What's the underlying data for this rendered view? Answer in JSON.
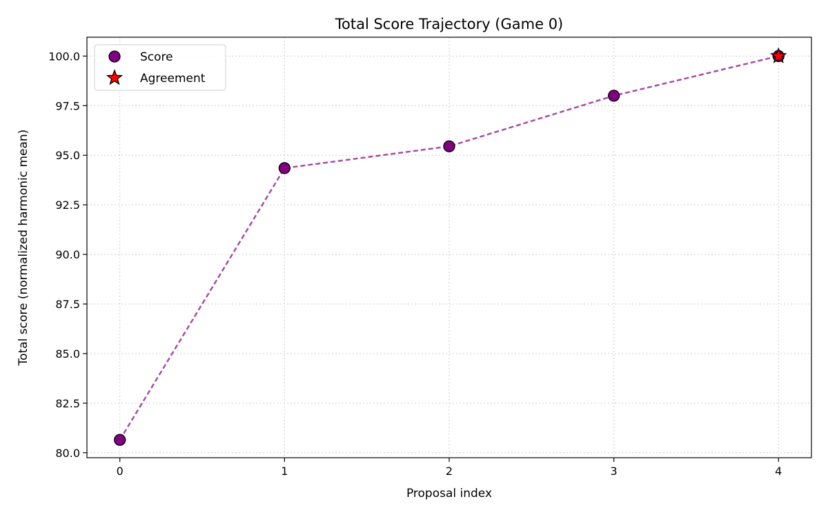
{
  "chart_data": {
    "type": "line",
    "title": "Total Score Trajectory (Game 0)",
    "xlabel": "Proposal index",
    "ylabel": "Total score (normalized harmonic mean)",
    "x": [
      0,
      1,
      2,
      3,
      4
    ],
    "x_ticks": [
      "0",
      "1",
      "2",
      "3",
      "4"
    ],
    "y_ticks": [
      "80.0",
      "82.5",
      "85.0",
      "87.5",
      "90.0",
      "92.5",
      "95.0",
      "97.5",
      "100.0"
    ],
    "xlim": [
      -0.2,
      4.2
    ],
    "ylim": [
      79.75,
      100.95
    ],
    "grid": true,
    "legend_position": "top-left",
    "series": [
      {
        "name": "Score",
        "style": "dashed line with circle markers",
        "color": "#800080",
        "x": [
          0,
          1,
          2,
          3,
          4
        ],
        "values": [
          80.65,
          94.35,
          95.45,
          98.0,
          100.0
        ]
      },
      {
        "name": "Agreement",
        "style": "star marker",
        "color": "#ff0000",
        "x": [
          4
        ],
        "values": [
          100.0
        ]
      }
    ]
  }
}
